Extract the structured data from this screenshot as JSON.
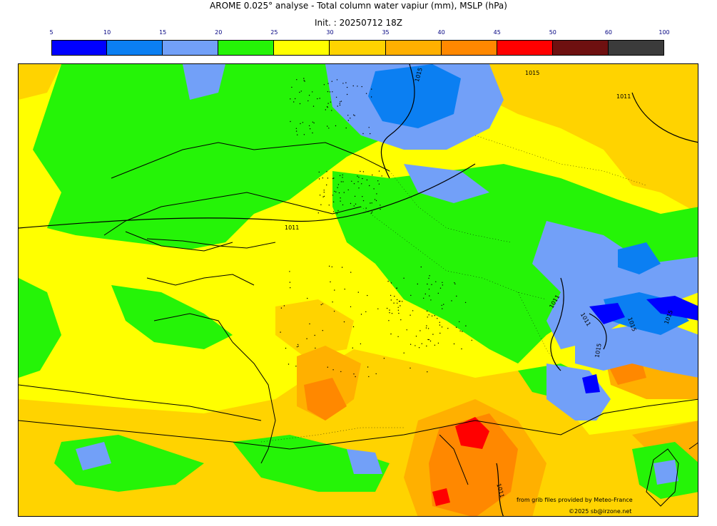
{
  "header": {
    "title": "AROME 0.025° analyse - Total column water vapiur (mm), MSLP (hPa)",
    "init": "Init. : 20250712 18Z"
  },
  "legend": {
    "ticks": [
      "5",
      "10",
      "15",
      "20",
      "25",
      "30",
      "35",
      "40",
      "45",
      "50",
      "60",
      "100"
    ],
    "colors": [
      "#0000ff",
      "#0b7ff2",
      "#72a0f8",
      "#25f407",
      "#ffff00",
      "#ffd300",
      "#ffb000",
      "#ff8800",
      "#ff0000",
      "#6e1010",
      "#3b3b3b"
    ]
  },
  "isobars": {
    "labels": [
      "1015",
      "1011",
      "1011",
      "1011",
      "1011",
      "1015",
      "1015",
      "1015",
      "1015",
      "1011"
    ]
  },
  "credits": {
    "line1": "from grib files provided by Meteo-France",
    "line2": "©2025 sb@irzone.net"
  }
}
